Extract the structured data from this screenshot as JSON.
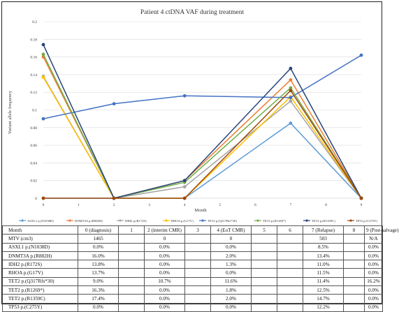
{
  "chart_data": {
    "type": "line",
    "title": "Patient 4 ctDNA VAF during treatment",
    "xlabel": "Month",
    "ylabel": "Variant allele frequency",
    "xlim": [
      0,
      9
    ],
    "ylim": [
      0,
      0.2
    ],
    "x_ticks": [
      "0",
      "1",
      "2",
      "3",
      "4",
      "5",
      "6",
      "7",
      "8",
      "9"
    ],
    "y_ticks": [
      "0",
      "0.02",
      "0.04",
      "0.06",
      "0.08",
      "0.1",
      "0.12",
      "0.14",
      "0.16",
      "0.18",
      "0.2"
    ],
    "grid": true,
    "legend_position": "bottom",
    "series": [
      {
        "name": "ASXL1 p.(N1038D)",
        "color": "#5b9bd5",
        "x": [
          0,
          2,
          4,
          7,
          9
        ],
        "values": [
          0,
          0,
          0,
          0.085,
          0
        ]
      },
      {
        "name": "DNMT3A p.(R882H)",
        "color": "#ed7d31",
        "x": [
          0,
          2,
          4,
          7,
          9
        ],
        "values": [
          0.16,
          0,
          0.02,
          0.134,
          0
        ]
      },
      {
        "name": "IDH2 p.(R172S)",
        "color": "#a5a5a5",
        "x": [
          0,
          2,
          4,
          7,
          9
        ],
        "values": [
          0.138,
          0,
          0.013,
          0.11,
          0
        ]
      },
      {
        "name": "RHOA p.(G17V)",
        "color": "#ffc000",
        "x": [
          0,
          2,
          4,
          7,
          9
        ],
        "values": [
          0.137,
          0,
          0,
          0.115,
          0
        ]
      },
      {
        "name": "TET2 p.(Q317Rfs*30)",
        "color": "#4472c4",
        "x": [
          0,
          2,
          4,
          7,
          9
        ],
        "values": [
          0.09,
          0.107,
          0.116,
          0.114,
          0.162
        ]
      },
      {
        "name": "TET2 p.(R1269*)",
        "color": "#70ad47",
        "x": [
          0,
          2,
          4,
          7,
          9
        ],
        "values": [
          0.163,
          0,
          0.018,
          0.125,
          0
        ]
      },
      {
        "name": "TET2 p.(R1359C)",
        "color": "#264478",
        "x": [
          0,
          2,
          4,
          7,
          9
        ],
        "values": [
          0.174,
          0,
          0.02,
          0.147,
          0
        ]
      },
      {
        "name": "TP53 p.(C275Y)",
        "color": "#9e480e",
        "x": [
          0,
          2,
          4,
          7,
          9
        ],
        "values": [
          0,
          0,
          0,
          0.122,
          0
        ]
      }
    ]
  },
  "table": {
    "header": [
      "Month",
      "0 (diagnosis)",
      "1",
      "2 (interim CMR)",
      "3",
      "4 (EoT CMR)",
      "5",
      "6",
      "7 (Relapse)",
      "8",
      "9 (Post-salvage)"
    ],
    "rows": [
      [
        "MTV (cm3)",
        "1465",
        "",
        "0",
        "",
        "0",
        "",
        "",
        "503",
        "",
        "N/A"
      ],
      [
        "ASXL1 p.(N1038D)",
        "0.0%",
        "",
        "0.0%",
        "",
        "0.0%",
        "",
        "",
        "8.5%",
        "",
        "0.0%"
      ],
      [
        "DNMT3A p.(R882H)",
        "16.0%",
        "",
        "0.0%",
        "",
        "2.0%",
        "",
        "",
        "13.4%",
        "",
        "0.0%"
      ],
      [
        "IDH2 p.(R172S)",
        "13.8%",
        "",
        "0.0%",
        "",
        "1.3%",
        "",
        "",
        "11.0%",
        "",
        "0.0%"
      ],
      [
        "RHOA p.(G17V)",
        "13.7%",
        "",
        "0.0%",
        "",
        "0.0%",
        "",
        "",
        "11.5%",
        "",
        "0.0%"
      ],
      [
        "TET2 p.(Q317Rfs*30)",
        "9.0%",
        "",
        "10.7%",
        "",
        "11.6%",
        "",
        "",
        "11.4%",
        "",
        "16.2%"
      ],
      [
        "TET2 p.(R1269*)",
        "16.3%",
        "",
        "0.0%",
        "",
        "1.8%",
        "",
        "",
        "12.5%",
        "",
        "0.0%"
      ],
      [
        "TET2 p.(R1359C)",
        "17.4%",
        "",
        "0.0%",
        "",
        "2.0%",
        "",
        "",
        "14.7%",
        "",
        "0.0%"
      ],
      [
        "TP53 p.(C275Y)",
        "0.0%",
        "",
        "0.0%",
        "",
        "0.0%",
        "",
        "",
        "12.2%",
        "",
        "0.0%"
      ]
    ]
  }
}
